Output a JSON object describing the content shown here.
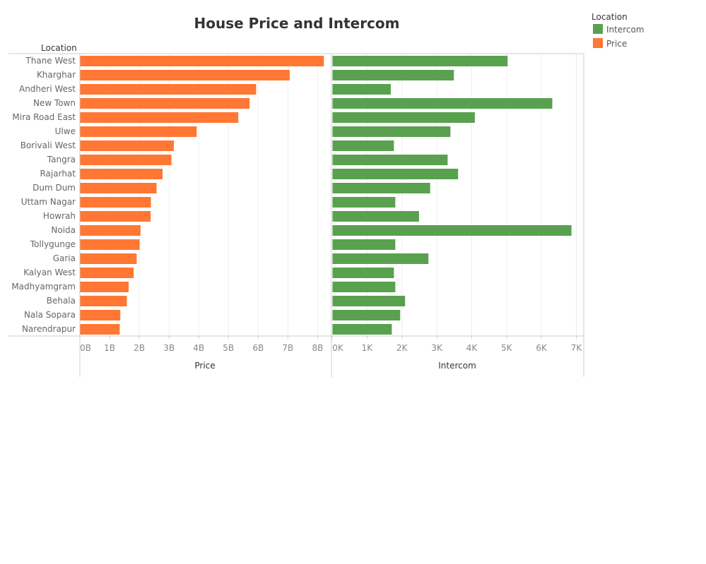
{
  "colors": {
    "price": "#ff7733",
    "intercom": "#59a14f",
    "grid": "#eeeeee",
    "axis": "#cccccc"
  },
  "legend": {
    "title": "Location",
    "items": [
      {
        "label": "Intercom",
        "color": "#59a14f"
      },
      {
        "label": "Price",
        "color": "#ff7733"
      }
    ]
  },
  "chart_data": {
    "type": "bar",
    "orientation": "horizontal",
    "title": "House Price and Intercom",
    "row_header": "Location",
    "categories": [
      "Thane West",
      "Kharghar",
      "Andheri West",
      "New Town",
      "Mira Road East",
      "Ulwe",
      "Borivali West",
      "Tangra",
      "Rajarhat",
      "Dum Dum",
      "Uttam Nagar",
      "Howrah",
      "Noida",
      "Tollygunge",
      "Garia",
      "Kalyan West",
      "Madhyamgram",
      "Behala",
      "Nala Sopara",
      "Narendrapur"
    ],
    "series": [
      {
        "name": "Price",
        "axis_title": "Price",
        "ticks": [
          "0B",
          "1B",
          "2B",
          "3B",
          "4B",
          "5B",
          "6B",
          "7B",
          "8B"
        ],
        "xlim": [
          0,
          8.3
        ],
        "unit": "billions",
        "values": [
          8.2,
          7.05,
          5.92,
          5.7,
          5.32,
          3.92,
          3.15,
          3.07,
          2.77,
          2.57,
          2.38,
          2.37,
          2.03,
          2.0,
          1.9,
          1.8,
          1.63,
          1.57,
          1.35,
          1.33
        ]
      },
      {
        "name": "Intercom",
        "axis_title": "Intercom",
        "ticks": [
          "0K",
          "1K",
          "2K",
          "3K",
          "4K",
          "5K",
          "6K",
          "7K"
        ],
        "xlim": [
          0,
          7.05
        ],
        "unit": "thousands",
        "values": [
          5.02,
          3.48,
          1.67,
          6.3,
          4.08,
          3.38,
          1.76,
          3.3,
          3.6,
          2.8,
          1.8,
          2.48,
          6.85,
          1.8,
          2.75,
          1.76,
          1.8,
          2.08,
          1.94,
          1.7
        ]
      }
    ],
    "grid": true
  }
}
